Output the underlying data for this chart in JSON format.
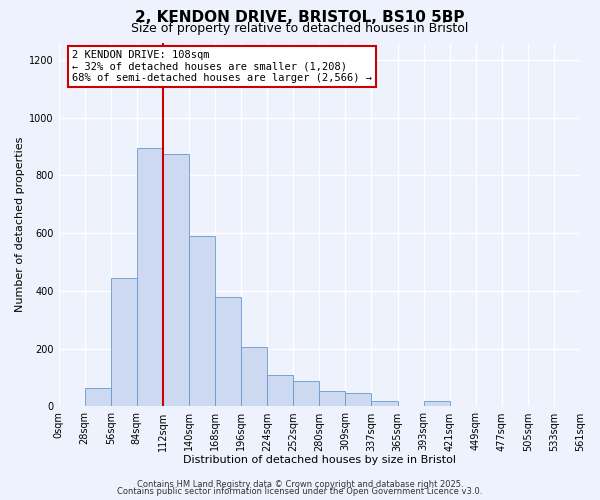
{
  "title": "2, KENDON DRIVE, BRISTOL, BS10 5BP",
  "subtitle": "Size of property relative to detached houses in Bristol",
  "xlabel": "Distribution of detached houses by size in Bristol",
  "ylabel": "Number of detached properties",
  "bar_labels": [
    "0sqm",
    "28sqm",
    "56sqm",
    "84sqm",
    "112sqm",
    "140sqm",
    "168sqm",
    "196sqm",
    "224sqm",
    "252sqm",
    "280sqm",
    "309sqm",
    "337sqm",
    "365sqm",
    "393sqm",
    "421sqm",
    "449sqm",
    "477sqm",
    "505sqm",
    "533sqm",
    "561sqm"
  ],
  "bar_values": [
    0,
    65,
    445,
    895,
    875,
    590,
    380,
    205,
    110,
    88,
    53,
    47,
    18,
    0,
    18,
    0,
    0,
    0,
    0,
    0,
    0
  ],
  "bar_color": "#ccd9f0",
  "bar_edge_color": "#6699cc",
  "vline_x": 4,
  "vline_color": "#cc0000",
  "annotation_line1": "2 KENDON DRIVE: 108sqm",
  "annotation_line2": "← 32% of detached houses are smaller (1,208)",
  "annotation_line3": "68% of semi-detached houses are larger (2,566) →",
  "annotation_box_color": "#ffffff",
  "annotation_box_edge": "#cc0000",
  "ylim": [
    0,
    1260
  ],
  "yticks": [
    0,
    200,
    400,
    600,
    800,
    1000,
    1200
  ],
  "footer1": "Contains HM Land Registry data © Crown copyright and database right 2025.",
  "footer2": "Contains public sector information licensed under the Open Government Licence v3.0.",
  "bg_color": "#eef2fc",
  "plot_bg_color": "#eef2fc",
  "grid_color": "#ffffff",
  "title_fontsize": 11,
  "subtitle_fontsize": 9,
  "label_fontsize": 8,
  "tick_fontsize": 7,
  "annotation_fontsize": 7.5,
  "footer_fontsize": 6
}
